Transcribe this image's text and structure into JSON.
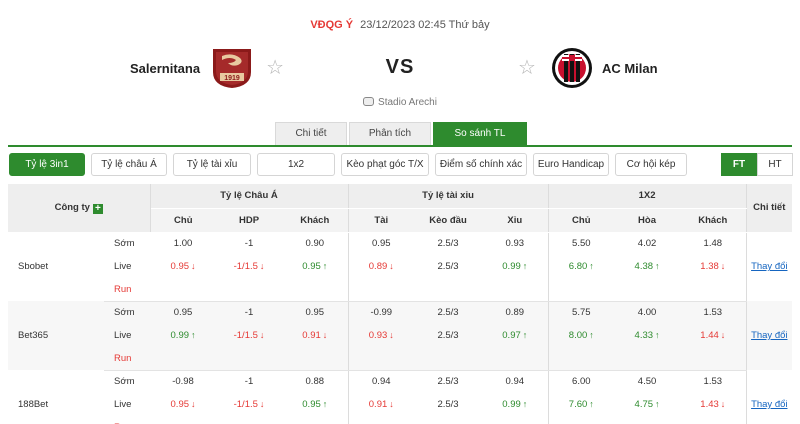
{
  "match": {
    "league": "VĐQG Ý",
    "datetime": "23/12/2023 02:45 Thứ bảy",
    "home_team": "Salernitana",
    "away_team": "AC Milan",
    "vs": "VS",
    "home_logo_text": "1919",
    "stadium": "Stadio Arechi"
  },
  "tabs": [
    {
      "label": "Chi tiết",
      "active": false
    },
    {
      "label": "Phân tích",
      "active": false
    },
    {
      "label": "So sánh TL",
      "active": true
    }
  ],
  "filters": [
    {
      "label": "Tỷ lệ 3in1",
      "active": true
    },
    {
      "label": "Tỷ lệ châu Á",
      "active": false
    },
    {
      "label": "Tỷ lệ tài xỉu",
      "active": false
    },
    {
      "label": "1x2",
      "active": false
    },
    {
      "label": "Kèo phạt góc T/X",
      "active": false
    },
    {
      "label": "Điểm số chính xác",
      "active": false
    },
    {
      "label": "Euro Handicap",
      "active": false
    },
    {
      "label": "Cơ hội kép",
      "active": false
    }
  ],
  "period": {
    "ft": "FT",
    "ht": "HT",
    "active": "FT"
  },
  "table": {
    "company_header": "Công ty",
    "groups": [
      "Tỷ lệ Châu Á",
      "Tỷ lệ tài xỉu",
      "1X2",
      "Chi tiết"
    ],
    "subheaders": [
      "Chủ",
      "HDP",
      "Khách",
      "Tài",
      "Kèo đầu",
      "Xỉu",
      "Chủ",
      "Hòa",
      "Khách"
    ],
    "row_labels": {
      "early": "Sớm",
      "live": "Live",
      "run": "Run"
    },
    "change_label": "Thay đổi",
    "bookmakers": [
      {
        "name": "Sbobet",
        "early": [
          "1.00",
          "-1",
          "0.90",
          "0.95",
          "2.5/3",
          "0.93",
          "5.50",
          "4.02",
          "1.48"
        ],
        "live": [
          "0.95",
          "-1/1.5",
          "0.95",
          "0.89",
          "2.5/3",
          "0.99",
          "6.80",
          "4.38",
          "1.38"
        ],
        "live_dir": [
          "down",
          "down",
          "up",
          "down",
          "",
          "up",
          "up",
          "up",
          "down"
        ],
        "run": [
          "-",
          "-",
          "-",
          "-",
          "-",
          "-",
          "-",
          "-",
          "-"
        ]
      },
      {
        "name": "Bet365",
        "early": [
          "0.95",
          "-1",
          "0.95",
          "-0.99",
          "2.5/3",
          "0.89",
          "5.75",
          "4.00",
          "1.53"
        ],
        "live": [
          "0.99",
          "-1/1.5",
          "0.91",
          "0.93",
          "2.5/3",
          "0.97",
          "8.00",
          "4.33",
          "1.44"
        ],
        "live_dir": [
          "up",
          "down",
          "down",
          "down",
          "",
          "up",
          "up",
          "up",
          "down"
        ],
        "run": [
          "-",
          "-",
          "-",
          "-",
          "-",
          "-",
          "-",
          "-",
          "-"
        ]
      },
      {
        "name": "188Bet",
        "early": [
          "-0.98",
          "-1",
          "0.88",
          "0.94",
          "2.5/3",
          "0.94",
          "6.00",
          "4.50",
          "1.53"
        ],
        "live": [
          "0.95",
          "-1/1.5",
          "0.95",
          "0.91",
          "2.5/3",
          "0.99",
          "7.60",
          "4.75",
          "1.43"
        ],
        "live_dir": [
          "down",
          "down",
          "up",
          "down",
          "",
          "up",
          "up",
          "up",
          "down"
        ],
        "run": [
          "-",
          "-",
          "-",
          "-",
          "-",
          "-",
          "-",
          "-",
          "-"
        ]
      }
    ]
  },
  "colors": {
    "accent": "#2e8b2e",
    "down": "#e53935",
    "up": "#2e8b2e",
    "link": "#1565c0"
  },
  "icons": {
    "favorite": "star-outline-icon",
    "stadium": "stadium-icon",
    "add": "plus-icon",
    "down": "arrow-down-icon",
    "up": "arrow-up-icon"
  }
}
